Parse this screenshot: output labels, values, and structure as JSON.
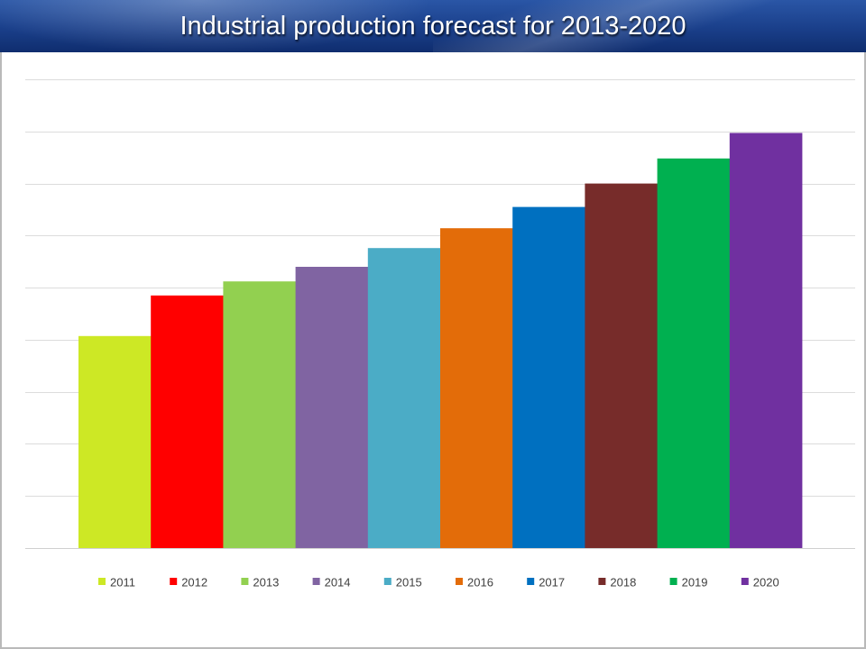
{
  "title": "Industrial production forecast for 2013-2020",
  "chart_data": {
    "type": "bar",
    "title": "Industrial production forecast for 2013-2020",
    "xlabel": "",
    "ylabel": "",
    "ylim": [
      0,
      9
    ],
    "grid": true,
    "legend_position": "bottom",
    "y_tick_labels_shown": false,
    "series": [
      {
        "name": "2011",
        "value": 4.07,
        "color": "#cde825"
      },
      {
        "name": "2012",
        "value": 4.85,
        "color": "#ff0000"
      },
      {
        "name": "2013",
        "value": 5.12,
        "color": "#92d050"
      },
      {
        "name": "2014",
        "value": 5.4,
        "color": "#8064a2"
      },
      {
        "name": "2015",
        "value": 5.76,
        "color": "#4bacc6"
      },
      {
        "name": "2016",
        "value": 6.14,
        "color": "#e36c09"
      },
      {
        "name": "2017",
        "value": 6.55,
        "color": "#0070c0"
      },
      {
        "name": "2018",
        "value": 7.0,
        "color": "#772c2a"
      },
      {
        "name": "2019",
        "value": 7.48,
        "color": "#00b050"
      },
      {
        "name": "2020",
        "value": 7.97,
        "color": "#7030a0"
      }
    ]
  }
}
